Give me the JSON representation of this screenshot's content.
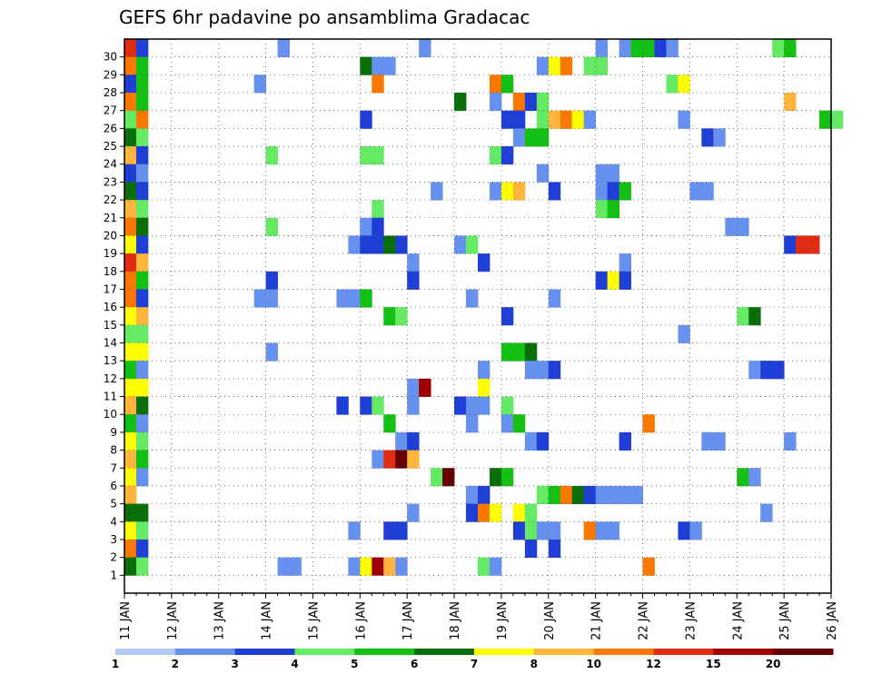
{
  "chart_data": {
    "type": "heatmap",
    "title": "GEFS 6hr padavine po ansamblima Gradacac",
    "xlabel": "",
    "ylabel": "",
    "x_range": [
      0,
      60
    ],
    "y_range": [
      0,
      30
    ],
    "x_ticks": [
      {
        "label": "11 JAN",
        "x": 0
      },
      {
        "label": "12 JAN",
        "x": 4
      },
      {
        "label": "13 JAN",
        "x": 8
      },
      {
        "label": "14 JAN",
        "x": 12
      },
      {
        "label": "15 JAN",
        "x": 16
      },
      {
        "label": "16 JAN",
        "x": 20
      },
      {
        "label": "17 JAN",
        "x": 24
      },
      {
        "label": "18 JAN",
        "x": 28
      },
      {
        "label": "19 JAN",
        "x": 32
      },
      {
        "label": "20 JAN",
        "x": 36
      },
      {
        "label": "21 JAN",
        "x": 40
      },
      {
        "label": "22 JAN",
        "x": 44
      },
      {
        "label": "23 JAN",
        "x": 48
      },
      {
        "label": "24 JAN",
        "x": 52
      },
      {
        "label": "25 JAN",
        "x": 56
      },
      {
        "label": "26 JAN",
        "x": 60
      }
    ],
    "y_ticks": [
      "1",
      "2",
      "3",
      "4",
      "5",
      "6",
      "7",
      "8",
      "9",
      "10",
      "11",
      "12",
      "13",
      "14",
      "15",
      "16",
      "17",
      "18",
      "19",
      "20",
      "21",
      "22",
      "23",
      "24",
      "25",
      "26",
      "27",
      "28",
      "29",
      "30"
    ],
    "grid": true,
    "legend": {
      "placement": "bottom",
      "colors": [
        "#b4c8f5",
        "#6691ee",
        "#1e3ed6",
        "#64ea64",
        "#14c014",
        "#0a6e0a",
        "#ffff00",
        "#ffb43c",
        "#fa7800",
        "#e12c14",
        "#a00000",
        "#640000"
      ],
      "labels": [
        "1",
        "2",
        "3",
        "4",
        "5",
        "6",
        "7",
        "8",
        "10",
        "12",
        "15",
        "20"
      ]
    },
    "cells": [
      [
        30,
        0,
        9
      ],
      [
        30,
        1,
        2
      ],
      [
        30,
        13,
        1
      ],
      [
        30,
        25,
        1
      ],
      [
        30,
        40,
        1
      ],
      [
        30,
        42,
        1
      ],
      [
        30,
        43,
        4
      ],
      [
        30,
        44,
        4
      ],
      [
        30,
        45,
        2
      ],
      [
        30,
        46,
        1
      ],
      [
        30,
        55,
        3
      ],
      [
        30,
        56,
        4
      ],
      [
        29,
        0,
        8
      ],
      [
        29,
        1,
        4
      ],
      [
        29,
        20,
        5
      ],
      [
        29,
        21,
        1
      ],
      [
        29,
        22,
        1
      ],
      [
        29,
        35,
        1
      ],
      [
        29,
        36,
        6
      ],
      [
        29,
        37,
        8
      ],
      [
        29,
        39,
        3
      ],
      [
        29,
        40,
        3
      ],
      [
        28,
        0,
        2
      ],
      [
        28,
        1,
        4
      ],
      [
        28,
        11,
        1
      ],
      [
        28,
        21,
        8
      ],
      [
        28,
        31,
        8
      ],
      [
        28,
        32,
        4
      ],
      [
        28,
        46,
        3
      ],
      [
        28,
        47,
        6
      ],
      [
        27,
        0,
        8
      ],
      [
        27,
        1,
        4
      ],
      [
        27,
        28,
        5
      ],
      [
        27,
        31,
        1
      ],
      [
        27,
        33,
        8
      ],
      [
        27,
        34,
        2
      ],
      [
        27,
        35,
        3
      ],
      [
        27,
        56,
        7
      ],
      [
        26,
        0,
        3
      ],
      [
        26,
        1,
        8
      ],
      [
        26,
        20,
        2
      ],
      [
        26,
        32,
        2
      ],
      [
        26,
        33,
        2
      ],
      [
        26,
        35,
        3
      ],
      [
        26,
        36,
        7
      ],
      [
        26,
        37,
        8
      ],
      [
        26,
        38,
        6
      ],
      [
        26,
        39,
        1
      ],
      [
        26,
        47,
        1
      ],
      [
        26,
        59,
        4
      ],
      [
        26,
        60,
        3
      ],
      [
        25,
        0,
        5
      ],
      [
        25,
        1,
        3
      ],
      [
        25,
        33,
        1
      ],
      [
        25,
        34,
        4
      ],
      [
        25,
        35,
        4
      ],
      [
        25,
        49,
        2
      ],
      [
        25,
        50,
        1
      ],
      [
        24,
        0,
        7
      ],
      [
        24,
        1,
        2
      ],
      [
        24,
        12,
        3
      ],
      [
        24,
        20,
        3
      ],
      [
        24,
        21,
        3
      ],
      [
        24,
        31,
        3
      ],
      [
        24,
        32,
        2
      ],
      [
        23,
        0,
        2
      ],
      [
        23,
        1,
        1
      ],
      [
        23,
        35,
        1
      ],
      [
        23,
        40,
        1
      ],
      [
        23,
        41,
        1
      ],
      [
        22,
        0,
        5
      ],
      [
        22,
        1,
        2
      ],
      [
        22,
        26,
        1
      ],
      [
        22,
        31,
        1
      ],
      [
        22,
        32,
        6
      ],
      [
        22,
        33,
        7
      ],
      [
        22,
        36,
        2
      ],
      [
        22,
        40,
        1
      ],
      [
        22,
        41,
        2
      ],
      [
        22,
        42,
        4
      ],
      [
        22,
        48,
        1
      ],
      [
        22,
        49,
        1
      ],
      [
        21,
        0,
        7
      ],
      [
        21,
        1,
        3
      ],
      [
        21,
        21,
        3
      ],
      [
        21,
        40,
        3
      ],
      [
        21,
        41,
        4
      ],
      [
        20,
        0,
        8
      ],
      [
        20,
        1,
        5
      ],
      [
        20,
        12,
        3
      ],
      [
        20,
        20,
        1
      ],
      [
        20,
        21,
        2
      ],
      [
        20,
        51,
        1
      ],
      [
        20,
        52,
        1
      ],
      [
        19,
        0,
        6
      ],
      [
        19,
        1,
        2
      ],
      [
        19,
        19,
        1
      ],
      [
        19,
        20,
        2
      ],
      [
        19,
        21,
        2
      ],
      [
        19,
        22,
        5
      ],
      [
        19,
        23,
        2
      ],
      [
        19,
        28,
        1
      ],
      [
        19,
        29,
        3
      ],
      [
        19,
        56,
        2
      ],
      [
        19,
        57,
        9
      ],
      [
        19,
        58,
        9
      ],
      [
        18,
        0,
        9
      ],
      [
        18,
        1,
        7
      ],
      [
        18,
        24,
        1
      ],
      [
        18,
        30,
        2
      ],
      [
        18,
        42,
        1
      ],
      [
        17,
        0,
        8
      ],
      [
        17,
        1,
        4
      ],
      [
        17,
        12,
        2
      ],
      [
        17,
        24,
        2
      ],
      [
        17,
        40,
        2
      ],
      [
        17,
        41,
        6
      ],
      [
        17,
        42,
        2
      ],
      [
        16,
        0,
        8
      ],
      [
        16,
        1,
        2
      ],
      [
        16,
        11,
        1
      ],
      [
        16,
        12,
        1
      ],
      [
        16,
        18,
        1
      ],
      [
        16,
        19,
        1
      ],
      [
        16,
        20,
        4
      ],
      [
        16,
        29,
        1
      ],
      [
        16,
        36,
        1
      ],
      [
        15,
        0,
        6
      ],
      [
        15,
        1,
        7
      ],
      [
        15,
        22,
        4
      ],
      [
        15,
        23,
        3
      ],
      [
        15,
        32,
        2
      ],
      [
        15,
        52,
        3
      ],
      [
        15,
        53,
        5
      ],
      [
        14,
        0,
        3
      ],
      [
        14,
        1,
        3
      ],
      [
        14,
        47,
        1
      ],
      [
        13,
        0,
        6
      ],
      [
        13,
        1,
        6
      ],
      [
        13,
        12,
        1
      ],
      [
        13,
        32,
        4
      ],
      [
        13,
        33,
        4
      ],
      [
        13,
        34,
        5
      ],
      [
        12,
        0,
        4
      ],
      [
        12,
        1,
        1
      ],
      [
        12,
        30,
        1
      ],
      [
        12,
        34,
        1
      ],
      [
        12,
        35,
        1
      ],
      [
        12,
        36,
        2
      ],
      [
        12,
        53,
        1
      ],
      [
        12,
        54,
        2
      ],
      [
        12,
        55,
        2
      ],
      [
        11,
        0,
        6
      ],
      [
        11,
        1,
        6
      ],
      [
        11,
        24,
        1
      ],
      [
        11,
        25,
        10
      ],
      [
        11,
        30,
        6
      ],
      [
        10,
        0,
        7
      ],
      [
        10,
        1,
        5
      ],
      [
        10,
        18,
        2
      ],
      [
        10,
        20,
        2
      ],
      [
        10,
        21,
        3
      ],
      [
        10,
        24,
        1
      ],
      [
        10,
        28,
        2
      ],
      [
        10,
        29,
        1
      ],
      [
        10,
        30,
        1
      ],
      [
        10,
        32,
        3
      ],
      [
        9,
        0,
        4
      ],
      [
        9,
        1,
        1
      ],
      [
        9,
        22,
        4
      ],
      [
        9,
        29,
        1
      ],
      [
        9,
        32,
        1
      ],
      [
        9,
        33,
        4
      ],
      [
        9,
        44,
        8
      ],
      [
        8,
        0,
        6
      ],
      [
        8,
        1,
        3
      ],
      [
        8,
        23,
        1
      ],
      [
        8,
        24,
        2
      ],
      [
        8,
        34,
        1
      ],
      [
        8,
        35,
        2
      ],
      [
        8,
        42,
        2
      ],
      [
        8,
        49,
        1
      ],
      [
        8,
        50,
        1
      ],
      [
        8,
        56,
        1
      ],
      [
        7,
        0,
        7
      ],
      [
        7,
        1,
        4
      ],
      [
        7,
        21,
        1
      ],
      [
        7,
        22,
        9
      ],
      [
        7,
        23,
        11
      ],
      [
        7,
        24,
        7
      ],
      [
        6,
        0,
        6
      ],
      [
        6,
        1,
        1
      ],
      [
        6,
        26,
        3
      ],
      [
        6,
        27,
        11
      ],
      [
        6,
        31,
        5
      ],
      [
        6,
        32,
        4
      ],
      [
        6,
        52,
        4
      ],
      [
        6,
        53,
        1
      ],
      [
        5,
        0,
        7
      ],
      [
        5,
        29,
        1
      ],
      [
        5,
        30,
        2
      ],
      [
        5,
        35,
        3
      ],
      [
        5,
        36,
        4
      ],
      [
        5,
        37,
        8
      ],
      [
        5,
        38,
        5
      ],
      [
        5,
        39,
        2
      ],
      [
        5,
        40,
        1
      ],
      [
        5,
        41,
        1
      ],
      [
        5,
        42,
        1
      ],
      [
        5,
        43,
        1
      ],
      [
        4,
        0,
        5
      ],
      [
        4,
        1,
        5
      ],
      [
        4,
        24,
        1
      ],
      [
        4,
        29,
        2
      ],
      [
        4,
        30,
        8
      ],
      [
        4,
        31,
        6
      ],
      [
        4,
        33,
        6
      ],
      [
        4,
        34,
        3
      ],
      [
        4,
        54,
        1
      ],
      [
        3,
        0,
        6
      ],
      [
        3,
        1,
        3
      ],
      [
        3,
        19,
        1
      ],
      [
        3,
        22,
        2
      ],
      [
        3,
        23,
        2
      ],
      [
        3,
        33,
        2
      ],
      [
        3,
        34,
        3
      ],
      [
        3,
        35,
        1
      ],
      [
        3,
        36,
        1
      ],
      [
        3,
        39,
        8
      ],
      [
        3,
        40,
        1
      ],
      [
        3,
        41,
        1
      ],
      [
        3,
        47,
        2
      ],
      [
        3,
        48,
        1
      ],
      [
        2,
        0,
        8
      ],
      [
        2,
        1,
        2
      ],
      [
        2,
        34,
        2
      ],
      [
        2,
        36,
        2
      ],
      [
        1,
        0,
        5
      ],
      [
        1,
        1,
        3
      ],
      [
        1,
        13,
        1
      ],
      [
        1,
        14,
        1
      ],
      [
        1,
        19,
        1
      ],
      [
        1,
        20,
        6
      ],
      [
        1,
        21,
        10
      ],
      [
        1,
        22,
        7
      ],
      [
        1,
        23,
        1
      ],
      [
        1,
        30,
        3
      ],
      [
        1,
        31,
        1
      ],
      [
        1,
        44,
        8
      ]
    ]
  }
}
